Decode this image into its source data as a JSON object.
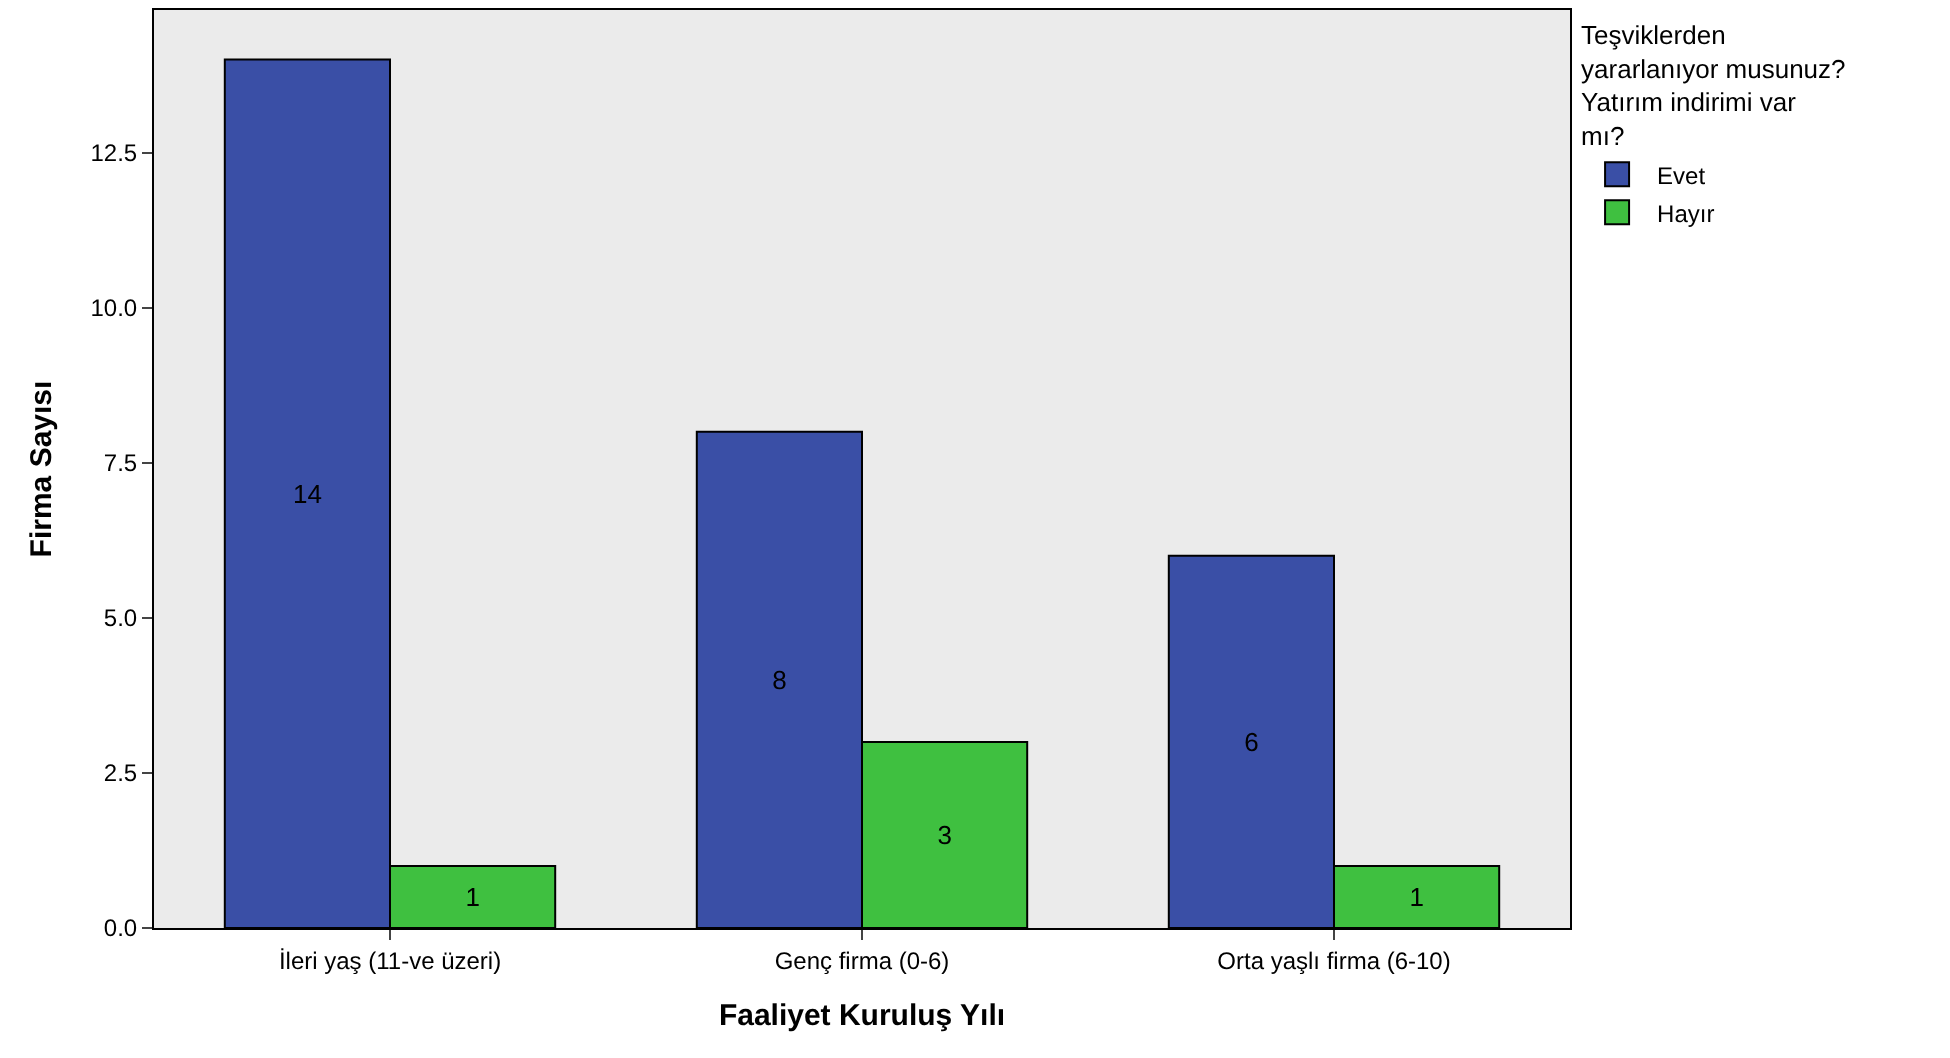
{
  "chart_data": {
    "type": "bar",
    "xlabel": "Faaliyet Kuruluş Yılı",
    "ylabel": "Firma Sayısı",
    "legend_title": "Teşviklerden yararlanıyor musunuz? Yatırım indirimi var mı?",
    "categories": [
      "İleri yaş (11-ve üzeri)",
      "Genç firma (0-6)",
      "Orta yaşlı firma (6-10)"
    ],
    "series": [
      {
        "name": "Evet",
        "color": "#3a4fa6",
        "values": [
          14,
          8,
          6
        ]
      },
      {
        "name": "Hayır",
        "color": "#3fc040",
        "values": [
          1,
          3,
          1
        ]
      }
    ],
    "ylim": [
      0,
      14.8
    ],
    "yticks": [
      {
        "value": 0,
        "label": "0.0"
      },
      {
        "value": 2.5,
        "label": "2.5"
      },
      {
        "value": 5,
        "label": "5.0"
      },
      {
        "value": 7.5,
        "label": "7.5"
      },
      {
        "value": 10,
        "label": "10.0"
      },
      {
        "value": 12.5,
        "label": "12.5"
      }
    ],
    "data_labels": true,
    "grid": false,
    "legend": "top right"
  }
}
